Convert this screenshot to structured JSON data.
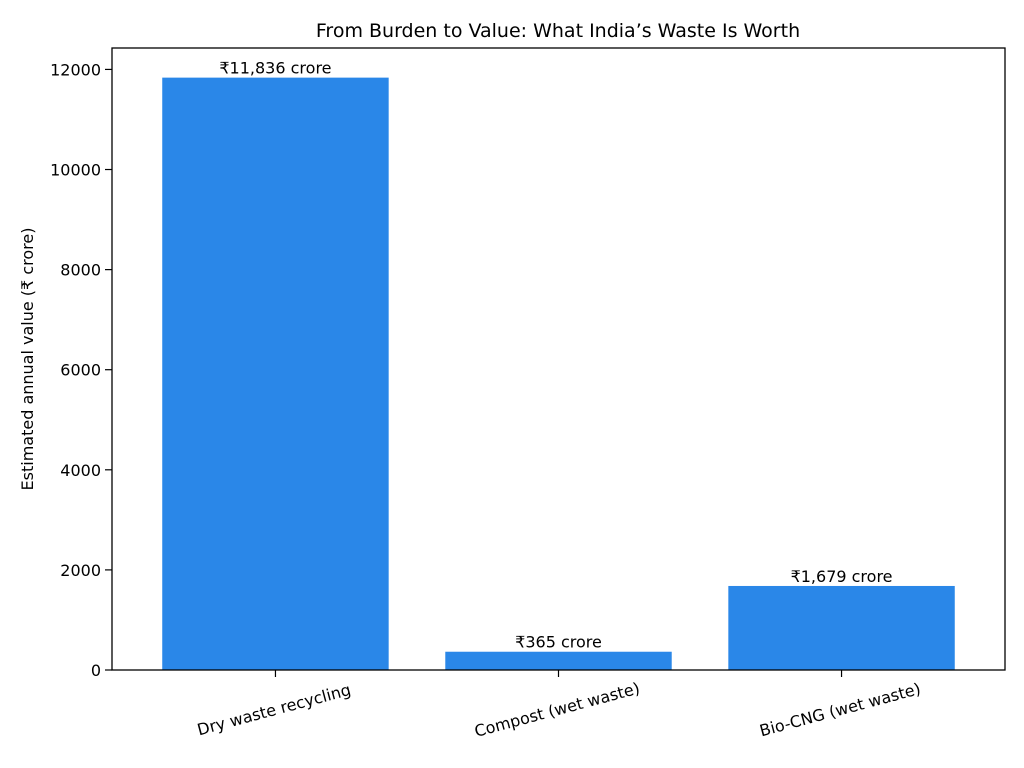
{
  "chart_data": {
    "type": "bar",
    "title": "From Burden to Value: What India’s Waste Is Worth",
    "xlabel": "",
    "ylabel": "Estimated annual value (₹ crore)",
    "categories": [
      "Dry waste recycling",
      "Compost (wet waste)",
      "Bio-CNG (wet waste)"
    ],
    "values": [
      11836,
      365,
      1679
    ],
    "data_labels": [
      "₹11,836 crore",
      "₹365 crore",
      "₹1,679 crore"
    ],
    "yticks": [
      0,
      2000,
      4000,
      6000,
      8000,
      10000,
      12000
    ],
    "ytick_labels": [
      "0",
      "2000",
      "4000",
      "6000",
      "8000",
      "10000",
      "12000"
    ],
    "ylim": [
      0,
      12428
    ],
    "grid": false,
    "bar_color": "#2a87e8"
  }
}
